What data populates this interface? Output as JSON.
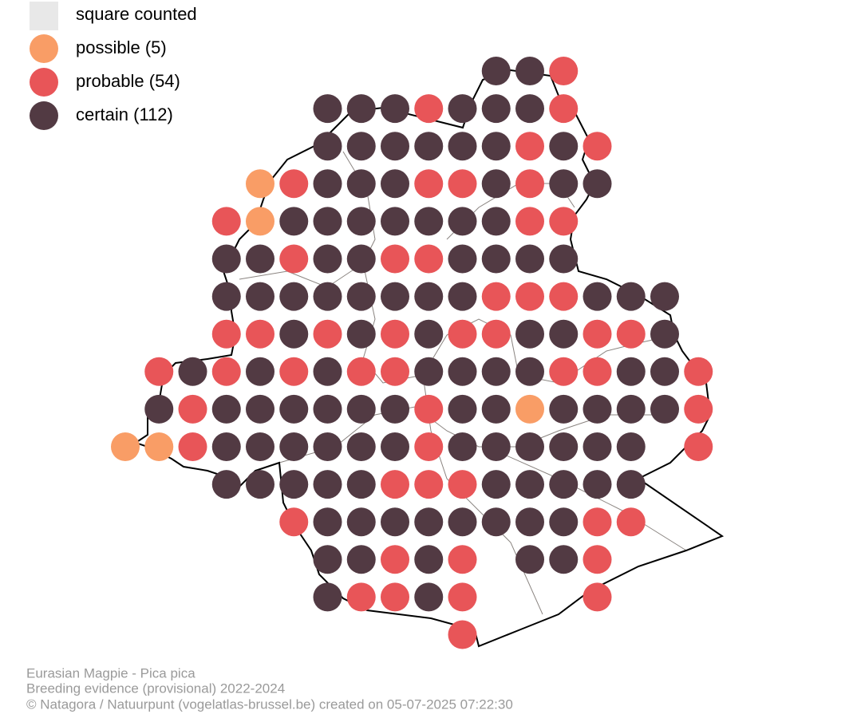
{
  "legend": {
    "items": [
      {
        "label": "square counted",
        "color": "#e8e8e8"
      },
      {
        "label": "possible (5)",
        "color": "#f99d66"
      },
      {
        "label": "probable (54)",
        "color": "#e85558"
      },
      {
        "label": "certain (112)",
        "color": "#523a43"
      }
    ]
  },
  "footer": {
    "lines": [
      "Eurasian Magpie - Pica pica",
      "Breeding evidence (provisional) 2022-2024",
      "© Natagora / Natuurpunt (vogelatlas-brussel.be) created on 05-07-2025 07:22:30"
    ]
  }
}
